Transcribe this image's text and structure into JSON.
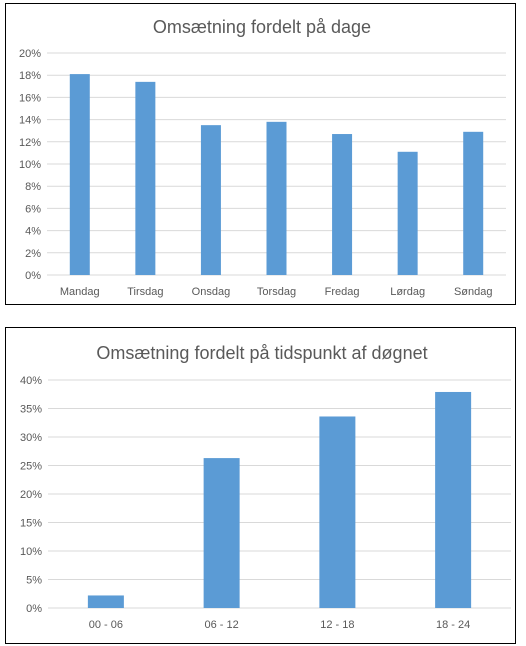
{
  "chart_data": [
    {
      "type": "bar",
      "title": "Omsætning fordelt på dage",
      "categories": [
        "Mandag",
        "Tirsdag",
        "Onsdag",
        "Torsdag",
        "Fredag",
        "Lørdag",
        "Søndag"
      ],
      "values": [
        18.1,
        17.4,
        13.5,
        13.8,
        12.7,
        11.1,
        12.9
      ],
      "yticks": [
        "0%",
        "2%",
        "4%",
        "6%",
        "8%",
        "10%",
        "12%",
        "14%",
        "16%",
        "18%",
        "20%"
      ],
      "ylim": [
        0,
        20
      ],
      "unit": "%",
      "grid": true,
      "bar_color": "#5b9bd5"
    },
    {
      "type": "bar",
      "title": "Omsætning fordelt på tidspunkt af døgnet",
      "categories": [
        "00 - 06",
        "06 - 12",
        "12 - 18",
        "18 - 24"
      ],
      "values": [
        2.2,
        26.3,
        33.6,
        37.9
      ],
      "yticks": [
        "0%",
        "5%",
        "10%",
        "15%",
        "20%",
        "25%",
        "30%",
        "35%",
        "40%"
      ],
      "ylim": [
        0,
        40
      ],
      "unit": "%",
      "grid": true,
      "bar_color": "#5b9bd5"
    }
  ]
}
